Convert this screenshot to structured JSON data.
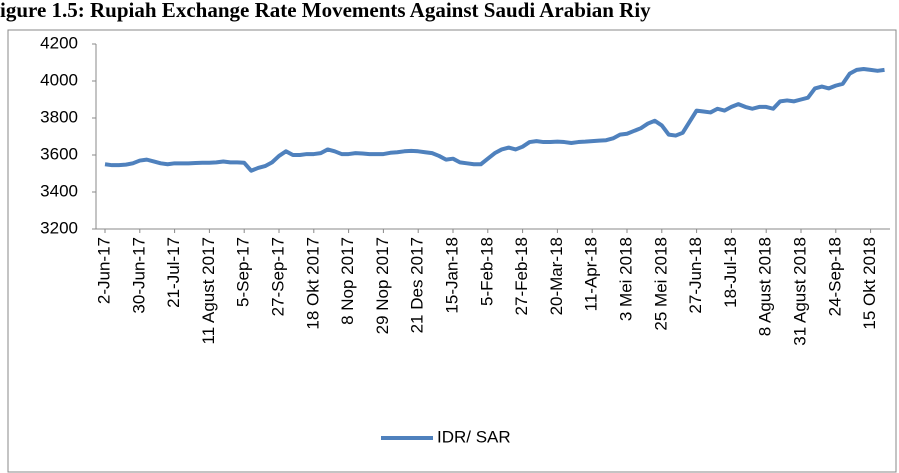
{
  "chart_data": {
    "type": "line",
    "title": "igure 1.5: Rupiah Exchange Rate Movements Against Saudi Arabian Riy",
    "categories": [
      "2-Jun-17",
      null,
      null,
      null,
      null,
      "30-Jun-17",
      null,
      null,
      null,
      null,
      "21-Jul-17",
      null,
      null,
      null,
      null,
      "11 Agust 2017",
      null,
      null,
      null,
      null,
      "5-Sep-17",
      null,
      null,
      null,
      null,
      "27-Sep-17",
      null,
      null,
      null,
      null,
      "18 Okt 2017",
      null,
      null,
      null,
      null,
      "8 Nop 2017",
      null,
      null,
      null,
      null,
      "29 Nop 2017",
      null,
      null,
      null,
      null,
      "21 Des 2017",
      null,
      null,
      null,
      null,
      "15-Jan-18",
      null,
      null,
      null,
      null,
      "5-Feb-18",
      null,
      null,
      null,
      null,
      "27-Feb-18",
      null,
      null,
      null,
      null,
      "20-Mar-18",
      null,
      null,
      null,
      null,
      "11-Apr-18",
      null,
      null,
      null,
      null,
      "3 Mei 2018",
      null,
      null,
      null,
      null,
      "25 Mei 2018",
      null,
      null,
      null,
      null,
      "27-Jun-18",
      null,
      null,
      null,
      null,
      "18-Jul-18",
      null,
      null,
      null,
      null,
      "8 Agust 2018",
      null,
      null,
      null,
      null,
      "31 Agust 2018",
      null,
      null,
      null,
      null,
      "24-Sep-18",
      null,
      null,
      null,
      null,
      "15 Okt 2018",
      null,
      null
    ],
    "series": [
      {
        "name": "IDR/ SAR",
        "color": "#4f81bd",
        "values": [
          3550,
          3545,
          3545,
          3548,
          3555,
          3570,
          3575,
          3565,
          3555,
          3550,
          3555,
          3555,
          3555,
          3557,
          3558,
          3558,
          3560,
          3565,
          3560,
          3560,
          3558,
          3515,
          3530,
          3540,
          3560,
          3595,
          3620,
          3600,
          3600,
          3605,
          3605,
          3610,
          3630,
          3620,
          3605,
          3605,
          3610,
          3608,
          3605,
          3605,
          3605,
          3612,
          3615,
          3620,
          3622,
          3620,
          3615,
          3610,
          3595,
          3575,
          3580,
          3560,
          3555,
          3550,
          3550,
          3580,
          3610,
          3630,
          3640,
          3630,
          3645,
          3670,
          3675,
          3670,
          3670,
          3672,
          3670,
          3665,
          3670,
          3672,
          3675,
          3678,
          3680,
          3690,
          3710,
          3715,
          3730,
          3745,
          3770,
          3785,
          3760,
          3710,
          3705,
          3720,
          3780,
          3840,
          3835,
          3830,
          3850,
          3840,
          3860,
          3875,
          3860,
          3850,
          3860,
          3860,
          3850,
          3890,
          3895,
          3890,
          3900,
          3910,
          3960,
          3970,
          3960,
          3975,
          3985,
          4040,
          4060,
          4065,
          4060,
          4055,
          4060
        ]
      }
    ],
    "ylim": [
      3200,
      4200
    ],
    "yticks": [
      3200,
      3400,
      3600,
      3800,
      4000,
      4200
    ],
    "grid": false,
    "legend": "bottom"
  }
}
